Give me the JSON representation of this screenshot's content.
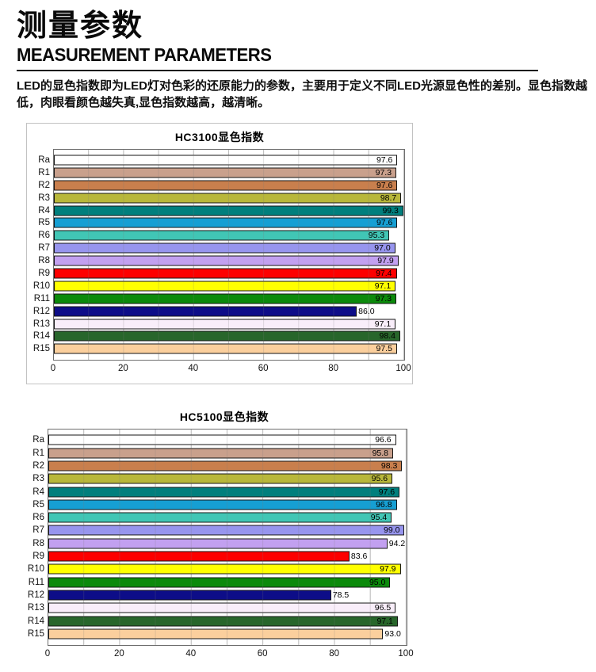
{
  "page": {
    "title_cn": "测量参数",
    "title_en": "MEASUREMENT PARAMETERS",
    "description_lines": [
      "LED的显色指数即为LED灯对色彩的还原能力的参数，主要用于定义不同LED光源显色性的差别。显色指数越",
      "低，肉眼看颜色越失真,显色指数越高，越清晰。"
    ]
  },
  "chart_data": [
    {
      "type": "bar",
      "orientation": "horizontal",
      "title": "HC3100显色指数",
      "categories": [
        "Ra",
        "R1",
        "R2",
        "R3",
        "R4",
        "R5",
        "R6",
        "R7",
        "R8",
        "R9",
        "R10",
        "R11",
        "R12",
        "R13",
        "R14",
        "R15"
      ],
      "values": [
        97.6,
        97.3,
        97.6,
        98.7,
        99.3,
        97.6,
        95.3,
        97.0,
        97.9,
        97.4,
        97.1,
        97.3,
        86.0,
        97.1,
        98.4,
        97.5
      ],
      "bar_colors": [
        "#FFFFFF",
        "#C9A08C",
        "#C97F4D",
        "#B8B73A",
        "#017F7D",
        "#169FD3",
        "#41C6B5",
        "#9795EE",
        "#C2A0F0",
        "#FD0000",
        "#FFFF00",
        "#0B8A0B",
        "#0D0D88",
        "#F9EEFA",
        "#28662B",
        "#FBCF9D"
      ],
      "xlim": [
        0,
        100
      ],
      "x_ticks": [
        0,
        20,
        40,
        60,
        80,
        100
      ],
      "gridline_step": 10,
      "grid": true,
      "has_outer_border": true
    },
    {
      "type": "bar",
      "orientation": "horizontal",
      "title": "HC5100显色指数",
      "categories": [
        "Ra",
        "R1",
        "R2",
        "R3",
        "R4",
        "R5",
        "R6",
        "R7",
        "R8",
        "R9",
        "R10",
        "R11",
        "R12",
        "R13",
        "R14",
        "R15"
      ],
      "values": [
        96.6,
        95.8,
        98.3,
        95.6,
        97.6,
        96.8,
        95.4,
        99.0,
        94.2,
        83.6,
        97.9,
        95.0,
        78.5,
        96.5,
        97.1,
        93.0
      ],
      "bar_colors": [
        "#FFFFFF",
        "#C9A08C",
        "#C97F4D",
        "#B8B73A",
        "#017F7D",
        "#169FD3",
        "#41C6B5",
        "#9795EE",
        "#C2A0F0",
        "#FD0000",
        "#FFFF00",
        "#0B8A0B",
        "#0D0D88",
        "#F9EEFA",
        "#28662B",
        "#FBCF9D"
      ],
      "xlim": [
        0,
        100
      ],
      "x_ticks": [
        0,
        20,
        40,
        60,
        80,
        100
      ],
      "gridline_step": 10,
      "grid": true,
      "has_outer_border": false
    }
  ],
  "style_tokens": {
    "bar_border_color": "#151515",
    "gridline_color": "#CDCDCD",
    "outer_box_border_color": "#C2C2C2",
    "text_color": "#000000"
  }
}
